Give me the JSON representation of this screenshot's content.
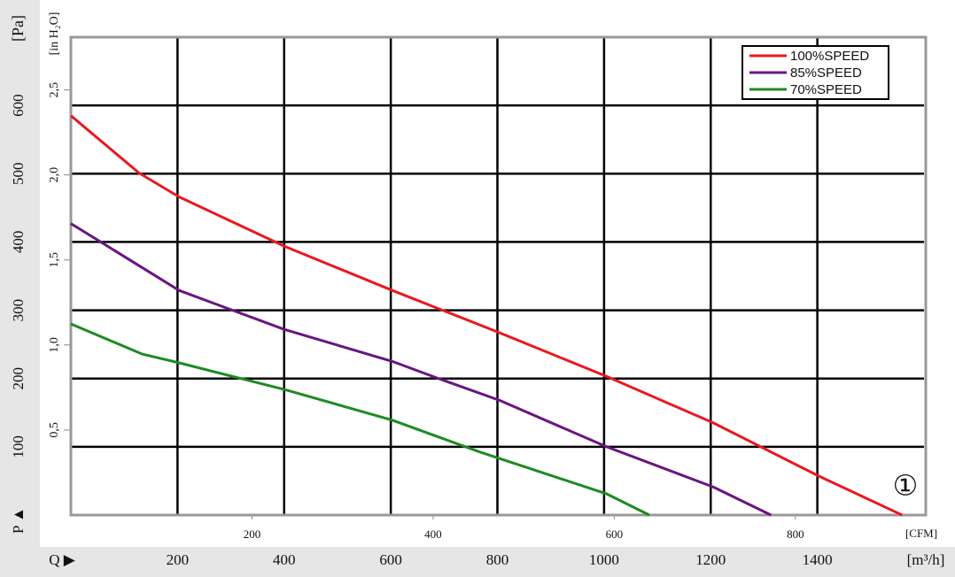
{
  "chart_data": {
    "type": "line",
    "y_label": "[Pa]",
    "y_symbol": "P ▲",
    "y2_label": "[in H₂O]",
    "x_label": "[m³/h]",
    "x_symbol": "Q ▶",
    "x2_label": "[CFM]",
    "annotation": "①",
    "xlim": [
      0,
      1600
    ],
    "xticks": [
      200,
      400,
      600,
      800,
      1000,
      1200,
      1400
    ],
    "x2lim": [
      0,
      942
    ],
    "x2ticks": [
      200,
      400,
      600,
      800
    ],
    "ylim": [
      0,
      700
    ],
    "yticks": [
      100,
      200,
      300,
      400,
      500,
      600
    ],
    "y2lim": [
      0,
      2.81
    ],
    "y2ticks": [
      {
        "value": 0.5,
        "label": "0,5"
      },
      {
        "value": 1.0,
        "label": "1,0"
      },
      {
        "value": 1.5,
        "label": "1,5"
      },
      {
        "value": 2.0,
        "label": "2,0"
      },
      {
        "value": 2.5,
        "label": "2,5"
      }
    ],
    "grid": true,
    "legend": "top-right",
    "series": [
      {
        "name": "100%SPEED",
        "color": "#e8191e",
        "x": [
          0,
          128,
          203,
          400,
          603,
          804,
          1005,
          1205,
          1403,
          1559
        ],
        "values": [
          585,
          501,
          466,
          394,
          329,
          267,
          203,
          135,
          57,
          0
        ]
      },
      {
        "name": "85%SPEED",
        "color": "#6a1580",
        "x": [
          0,
          203,
          400,
          603,
          693,
          804,
          1005,
          1205,
          1313
        ],
        "values": [
          427,
          329,
          272,
          225,
          199,
          168,
          100,
          41,
          0
        ]
      },
      {
        "name": "70%SPEED",
        "color": "#1f8a22",
        "x": [
          0,
          133,
          203,
          400,
          603,
          765,
          1005,
          1085
        ],
        "values": [
          280,
          236,
          223,
          184,
          139,
          93,
          31,
          0
        ]
      }
    ]
  }
}
